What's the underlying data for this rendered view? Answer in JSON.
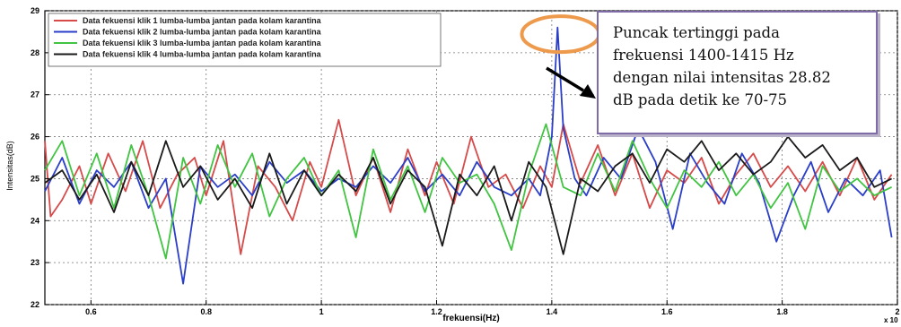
{
  "chart_data": {
    "type": "line",
    "xlabel": "frekuensi(Hz)",
    "ylabel": "Intensitas(dB)",
    "x_exponent_label": "x 10",
    "xlim": [
      0.52,
      2.0
    ],
    "ylim": [
      22,
      29
    ],
    "x_ticks": [
      "0.6",
      "0.8",
      "1",
      "1.2",
      "1.4",
      "1.6",
      "1.8",
      "2"
    ],
    "y_ticks": [
      "22",
      "23",
      "24",
      "25",
      "26",
      "27",
      "28",
      "29"
    ],
    "grid": true,
    "legend_position": "top-left",
    "peak_marker": {
      "x": 1.415,
      "y": 28.4
    },
    "series": [
      {
        "name": "Data fekuensi klik 1 lumba-lumba jantan pada kolam karantina",
        "color": "#d64a4a",
        "x": [
          0.52,
          0.53,
          0.55,
          0.58,
          0.6,
          0.63,
          0.66,
          0.69,
          0.72,
          0.75,
          0.78,
          0.8,
          0.83,
          0.86,
          0.89,
          0.92,
          0.95,
          0.98,
          1.0,
          1.03,
          1.06,
          1.09,
          1.12,
          1.15,
          1.18,
          1.2,
          1.23,
          1.26,
          1.29,
          1.32,
          1.35,
          1.38,
          1.4,
          1.42,
          1.45,
          1.48,
          1.51,
          1.54,
          1.57,
          1.6,
          1.63,
          1.66,
          1.69,
          1.72,
          1.75,
          1.78,
          1.81,
          1.84,
          1.87,
          1.9,
          1.93,
          1.96,
          1.99
        ],
        "y": [
          25.9,
          24.1,
          24.5,
          25.3,
          24.4,
          25.6,
          24.7,
          25.9,
          24.3,
          25.1,
          25.5,
          24.6,
          25.9,
          23.2,
          25.3,
          24.8,
          24.0,
          25.4,
          24.8,
          26.4,
          24.6,
          25.5,
          24.2,
          25.7,
          24.6,
          25.4,
          24.4,
          26.0,
          24.8,
          25.1,
          24.3,
          25.3,
          24.8,
          26.3,
          24.9,
          25.8,
          24.6,
          25.6,
          24.3,
          25.2,
          24.9,
          25.5,
          24.4,
          25.1,
          25.6,
          24.8,
          25.3,
          24.7,
          25.4,
          24.6,
          25.5,
          24.5,
          25.1
        ]
      },
      {
        "name": "Data fekuensi klik 2 lumba-lumba jantan pada kolam karantina",
        "color": "#2a3ec8",
        "x": [
          0.52,
          0.55,
          0.58,
          0.61,
          0.64,
          0.67,
          0.7,
          0.73,
          0.76,
          0.79,
          0.82,
          0.85,
          0.88,
          0.91,
          0.94,
          0.97,
          1.0,
          1.03,
          1.06,
          1.09,
          1.12,
          1.15,
          1.18,
          1.21,
          1.24,
          1.27,
          1.3,
          1.33,
          1.36,
          1.38,
          1.4,
          1.41,
          1.42,
          1.44,
          1.46,
          1.49,
          1.52,
          1.55,
          1.58,
          1.61,
          1.64,
          1.67,
          1.7,
          1.73,
          1.76,
          1.79,
          1.82,
          1.85,
          1.88,
          1.91,
          1.94,
          1.97,
          1.99
        ],
        "y": [
          24.7,
          25.5,
          24.4,
          25.2,
          24.8,
          25.4,
          24.3,
          25.0,
          22.5,
          25.3,
          24.8,
          25.1,
          24.6,
          25.4,
          24.9,
          25.2,
          24.7,
          25.0,
          24.8,
          25.3,
          24.9,
          25.5,
          24.7,
          25.1,
          24.6,
          25.4,
          24.8,
          24.6,
          25.0,
          24.6,
          26.0,
          28.6,
          26.2,
          25.0,
          24.6,
          25.5,
          25.0,
          26.2,
          25.4,
          23.8,
          25.6,
          24.9,
          24.4,
          25.6,
          24.9,
          23.5,
          24.6,
          25.4,
          24.2,
          25.0,
          24.6,
          25.2,
          23.6
        ]
      },
      {
        "name": "Data fekuensi klik 3 lumba-lumba jantan pada kolam karantina",
        "color": "#41c441",
        "x": [
          0.52,
          0.55,
          0.58,
          0.61,
          0.64,
          0.67,
          0.7,
          0.73,
          0.76,
          0.79,
          0.82,
          0.85,
          0.88,
          0.91,
          0.94,
          0.97,
          1.0,
          1.03,
          1.06,
          1.09,
          1.12,
          1.15,
          1.18,
          1.21,
          1.24,
          1.27,
          1.3,
          1.33,
          1.36,
          1.39,
          1.42,
          1.45,
          1.48,
          1.51,
          1.54,
          1.57,
          1.6,
          1.63,
          1.66,
          1.69,
          1.72,
          1.75,
          1.78,
          1.81,
          1.84,
          1.87,
          1.9,
          1.93,
          1.96,
          1.99
        ],
        "y": [
          25.2,
          25.9,
          24.6,
          25.6,
          24.3,
          25.8,
          24.6,
          23.1,
          25.5,
          24.4,
          25.8,
          24.8,
          25.6,
          24.1,
          25.0,
          25.5,
          24.6,
          25.2,
          23.6,
          25.7,
          24.5,
          25.3,
          24.2,
          25.5,
          24.9,
          25.1,
          24.4,
          23.3,
          25.1,
          26.3,
          24.8,
          24.6,
          25.6,
          24.7,
          25.9,
          25.0,
          24.3,
          25.2,
          24.8,
          25.4,
          24.6,
          25.1,
          24.3,
          24.9,
          23.8,
          25.3,
          24.7,
          25.0,
          24.6,
          24.8
        ]
      },
      {
        "name": "Data fekuensi klik 4 lumba-lumba jantan pada kolam karantina",
        "color": "#1a1a1a",
        "x": [
          0.52,
          0.55,
          0.58,
          0.61,
          0.64,
          0.67,
          0.7,
          0.73,
          0.76,
          0.79,
          0.82,
          0.85,
          0.88,
          0.91,
          0.94,
          0.97,
          1.0,
          1.03,
          1.06,
          1.09,
          1.12,
          1.15,
          1.18,
          1.21,
          1.24,
          1.27,
          1.3,
          1.33,
          1.36,
          1.39,
          1.42,
          1.45,
          1.48,
          1.51,
          1.54,
          1.57,
          1.6,
          1.63,
          1.66,
          1.69,
          1.72,
          1.75,
          1.78,
          1.81,
          1.84,
          1.87,
          1.9,
          1.93,
          1.96,
          1.99
        ],
        "y": [
          24.9,
          25.2,
          24.5,
          25.1,
          24.2,
          25.4,
          24.6,
          25.9,
          24.8,
          25.3,
          24.5,
          25.0,
          24.3,
          25.6,
          24.4,
          25.2,
          24.6,
          25.1,
          24.7,
          25.5,
          24.4,
          25.2,
          24.8,
          23.4,
          25.1,
          24.6,
          25.3,
          24.0,
          25.4,
          24.8,
          23.2,
          25.0,
          24.7,
          25.3,
          25.6,
          24.9,
          25.7,
          25.4,
          25.9,
          25.2,
          25.6,
          25.1,
          25.4,
          26.0,
          25.5,
          25.8,
          25.2,
          25.5,
          24.8,
          25.0
        ]
      }
    ]
  },
  "annotation": {
    "lines": [
      "Puncak tertinggi pada",
      "frekuensi 1400-1415 Hz",
      "dengan nilai intensitas 28.82",
      "dB pada detik ke 70-75"
    ],
    "border_color": "#7e6ba8",
    "arrow_color": "#000000",
    "circle_color": "#ee9a4d"
  }
}
